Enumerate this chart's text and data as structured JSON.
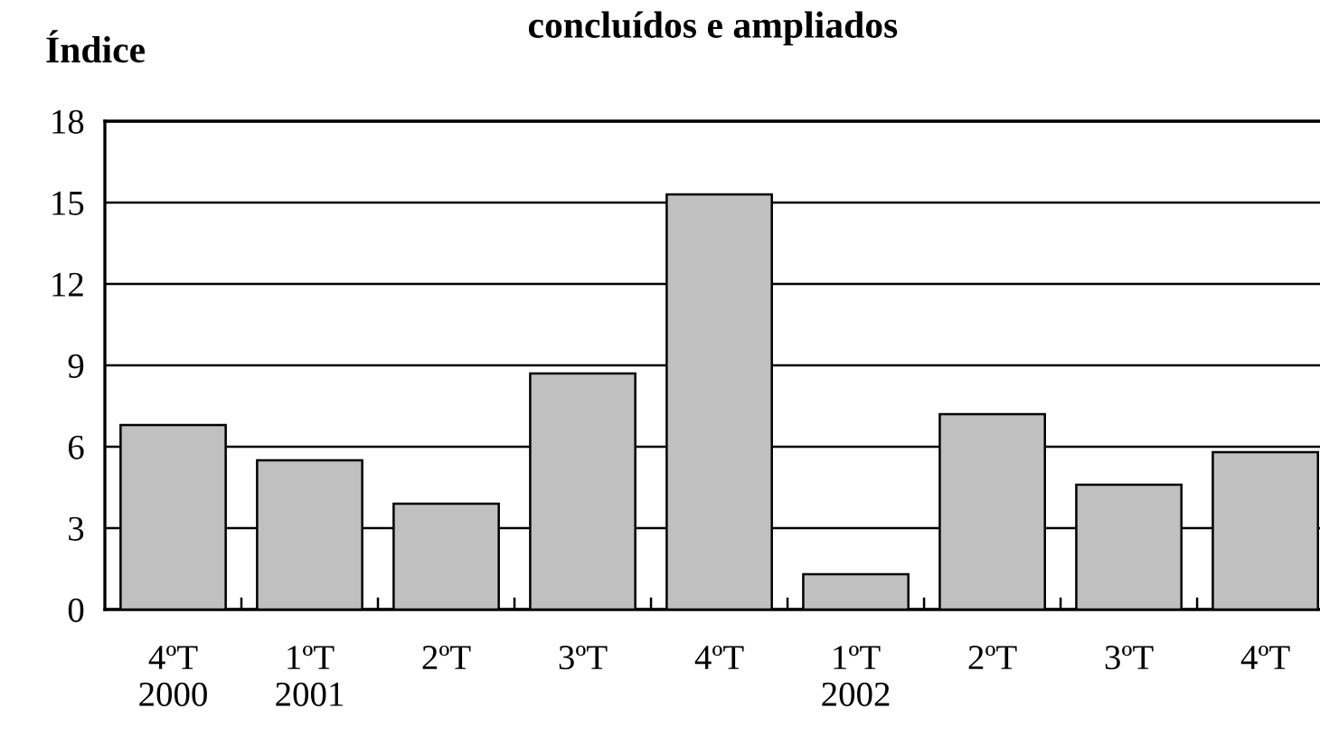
{
  "chart_data": {
    "type": "bar",
    "title": "concluídos e ampliados",
    "ylabel": "Índice",
    "categories": [
      "4ºT\n2000",
      "1ºT\n2001",
      "2ºT",
      "3ºT",
      "4ºT",
      "1ºT\n2002",
      "2ºT",
      "3ºT",
      "4ºT"
    ],
    "values": [
      6.8,
      5.5,
      3.9,
      8.7,
      15.3,
      1.3,
      7.2,
      4.6,
      5.8
    ],
    "color": "#c0c0c0",
    "ylim": [
      0,
      18
    ],
    "yticks": [
      0,
      3,
      6,
      9,
      12,
      15,
      18
    ],
    "grid": "y"
  }
}
